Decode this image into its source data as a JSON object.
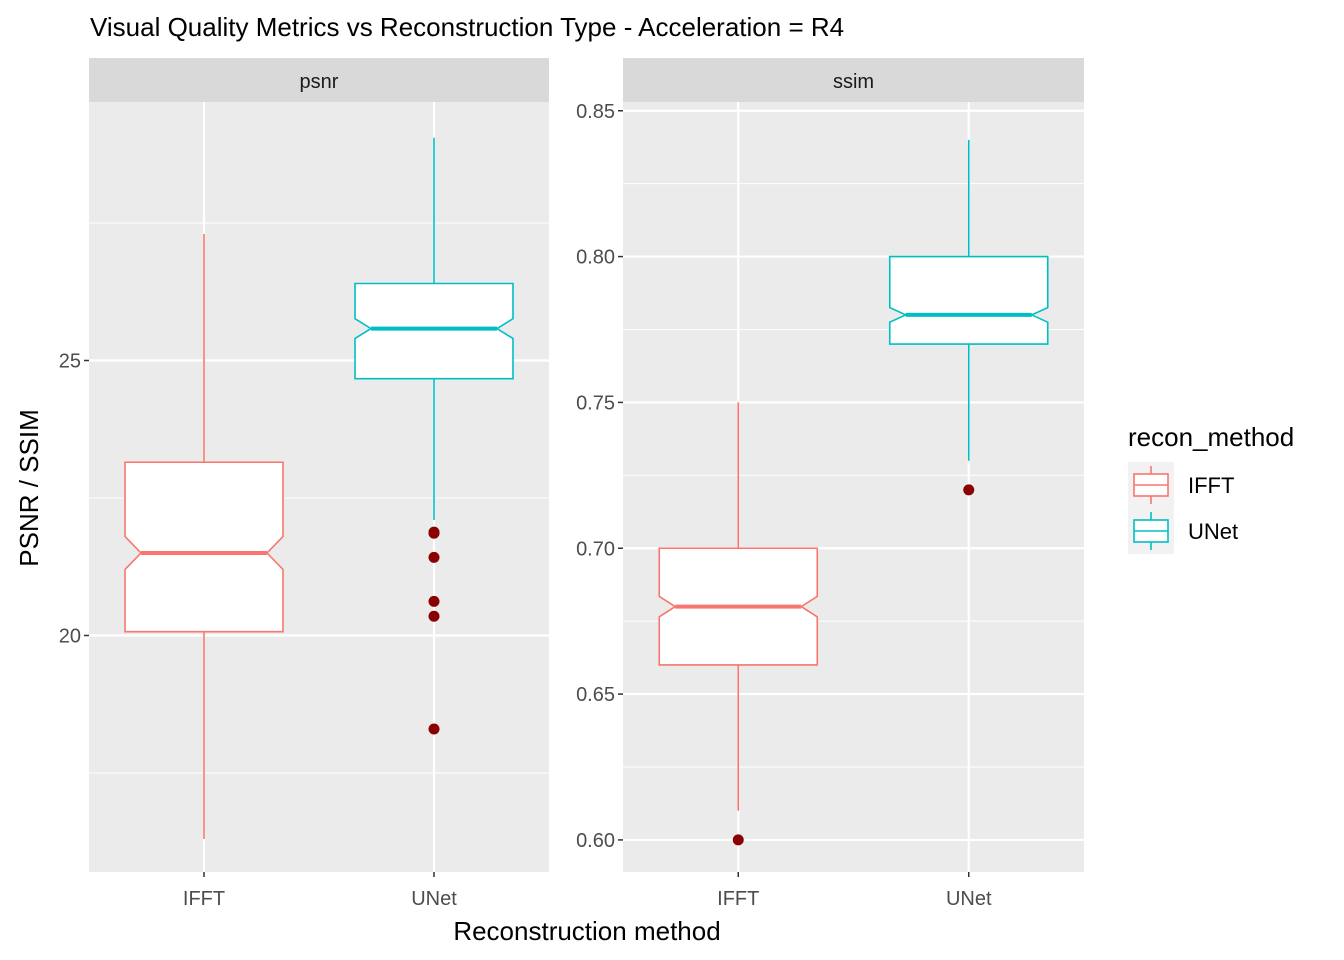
{
  "chart_data": {
    "type": "boxplot",
    "title": "Visual Quality Metrics vs Reconstruction Type - Acceleration = R4",
    "xlabel": "Reconstruction method",
    "ylabel": "PSNR / SSIM",
    "categories": [
      "IFFT",
      "UNet"
    ],
    "legend": {
      "title": "recon_method",
      "position": "right",
      "entries": [
        {
          "label": "IFFT",
          "color": "#F8766D"
        },
        {
          "label": "UNet",
          "color": "#00BFC4"
        }
      ]
    },
    "outlier_color": "#8B0000",
    "panel_background": "#EBEBEB",
    "strip_background": "#D9D9D9",
    "grid": true,
    "notched": true,
    "panels": [
      {
        "strip": "psnr",
        "ylim": [
          15.7,
          29.7
        ],
        "yticks": [
          20,
          25
        ],
        "ytick_labels": [
          "20",
          "25"
        ],
        "boxes": [
          {
            "category": "IFFT",
            "color": "#F8766D",
            "whisker_low": 16.3,
            "q1": 20.07,
            "median": 21.5,
            "q3": 23.15,
            "whisker_high": 27.3,
            "notch_low": 21.2,
            "notch_high": 21.8,
            "outliers": []
          },
          {
            "category": "UNet",
            "color": "#00BFC4",
            "whisker_low": 22.1,
            "q1": 24.67,
            "median": 25.58,
            "q3": 26.4,
            "whisker_high": 29.05,
            "notch_low": 25.4,
            "notch_high": 25.76,
            "outliers": [
              21.88,
              21.86,
              21.42,
              20.62,
              20.35,
              18.3
            ]
          }
        ]
      },
      {
        "strip": "ssim",
        "ylim": [
          0.589,
          0.853
        ],
        "yticks": [
          0.6,
          0.65,
          0.7,
          0.75,
          0.8,
          0.85
        ],
        "ytick_labels": [
          "0.60",
          "0.65",
          "0.70",
          "0.75",
          "0.80",
          "0.85"
        ],
        "boxes": [
          {
            "category": "IFFT",
            "color": "#F8766D",
            "whisker_low": 0.61,
            "q1": 0.66,
            "median": 0.68,
            "q3": 0.7,
            "whisker_high": 0.75,
            "notch_low": 0.6765,
            "notch_high": 0.6835,
            "outliers": [
              0.6
            ]
          },
          {
            "category": "UNet",
            "color": "#00BFC4",
            "whisker_low": 0.73,
            "q1": 0.77,
            "median": 0.78,
            "q3": 0.8,
            "whisker_high": 0.84,
            "notch_low": 0.7775,
            "notch_high": 0.7825,
            "outliers": [
              0.72
            ]
          }
        ]
      }
    ]
  }
}
